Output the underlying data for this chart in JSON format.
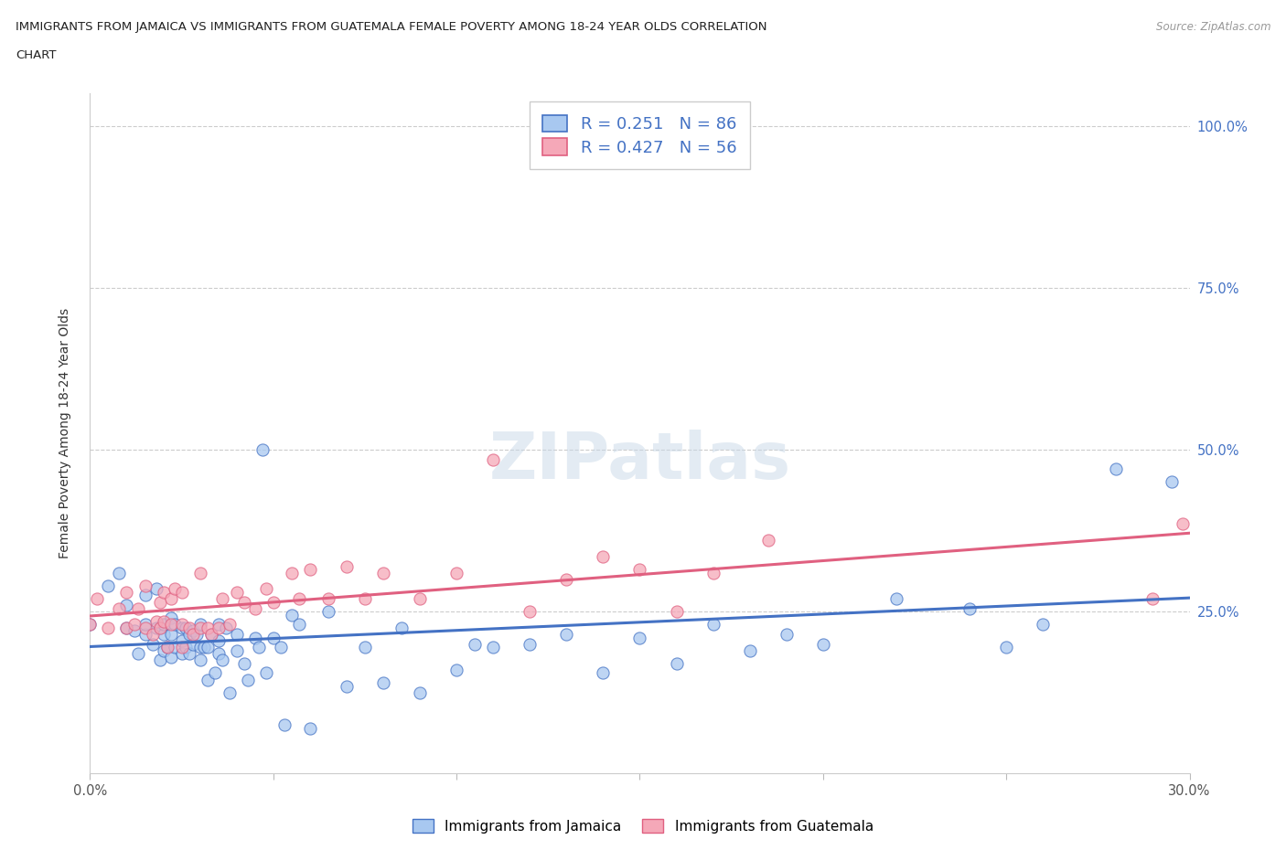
{
  "title_line1": "IMMIGRANTS FROM JAMAICA VS IMMIGRANTS FROM GUATEMALA FEMALE POVERTY AMONG 18-24 YEAR OLDS CORRELATION",
  "title_line2": "CHART",
  "source": "Source: ZipAtlas.com",
  "ylabel": "Female Poverty Among 18-24 Year Olds",
  "xlim": [
    0.0,
    0.3
  ],
  "ylim": [
    0.0,
    1.05
  ],
  "ytick_vals": [
    0.0,
    0.25,
    0.5,
    0.75,
    1.0
  ],
  "ytick_labels": [
    "",
    "25.0%",
    "50.0%",
    "75.0%",
    "100.0%"
  ],
  "xtick_vals": [
    0.0,
    0.05,
    0.1,
    0.15,
    0.2,
    0.25,
    0.3
  ],
  "xtick_labels": [
    "0.0%",
    "",
    "",
    "",
    "",
    "",
    "30.0%"
  ],
  "legend1_R": "0.251",
  "legend1_N": "86",
  "legend2_R": "0.427",
  "legend2_N": "56",
  "color_jamaica": "#a8c8f0",
  "color_guatemala": "#f5a8b8",
  "color_jamaica_line": "#4472c4",
  "color_guatemala_line": "#e06080",
  "jamaica_x": [
    0.0,
    0.005,
    0.008,
    0.01,
    0.01,
    0.012,
    0.013,
    0.015,
    0.015,
    0.015,
    0.017,
    0.018,
    0.018,
    0.019,
    0.019,
    0.02,
    0.02,
    0.02,
    0.021,
    0.022,
    0.022,
    0.022,
    0.023,
    0.023,
    0.025,
    0.025,
    0.025,
    0.026,
    0.026,
    0.027,
    0.027,
    0.028,
    0.028,
    0.029,
    0.03,
    0.03,
    0.03,
    0.031,
    0.032,
    0.032,
    0.033,
    0.034,
    0.035,
    0.035,
    0.035,
    0.036,
    0.037,
    0.038,
    0.04,
    0.04,
    0.042,
    0.043,
    0.045,
    0.046,
    0.047,
    0.048,
    0.05,
    0.052,
    0.053,
    0.055,
    0.057,
    0.06,
    0.065,
    0.07,
    0.075,
    0.08,
    0.085,
    0.09,
    0.1,
    0.105,
    0.11,
    0.12,
    0.13,
    0.14,
    0.15,
    0.16,
    0.17,
    0.18,
    0.19,
    0.2,
    0.22,
    0.24,
    0.25,
    0.26,
    0.28,
    0.295
  ],
  "jamaica_y": [
    0.23,
    0.29,
    0.31,
    0.225,
    0.26,
    0.22,
    0.185,
    0.215,
    0.23,
    0.275,
    0.2,
    0.225,
    0.285,
    0.175,
    0.225,
    0.19,
    0.215,
    0.23,
    0.195,
    0.18,
    0.215,
    0.24,
    0.195,
    0.23,
    0.185,
    0.205,
    0.225,
    0.195,
    0.225,
    0.185,
    0.215,
    0.2,
    0.22,
    0.215,
    0.175,
    0.195,
    0.23,
    0.195,
    0.145,
    0.195,
    0.215,
    0.155,
    0.185,
    0.205,
    0.23,
    0.175,
    0.225,
    0.125,
    0.19,
    0.215,
    0.17,
    0.145,
    0.21,
    0.195,
    0.5,
    0.155,
    0.21,
    0.195,
    0.075,
    0.245,
    0.23,
    0.07,
    0.25,
    0.135,
    0.195,
    0.14,
    0.225,
    0.125,
    0.16,
    0.2,
    0.195,
    0.2,
    0.215,
    0.155,
    0.21,
    0.17,
    0.23,
    0.19,
    0.215,
    0.2,
    0.27,
    0.255,
    0.195,
    0.23,
    0.47,
    0.45
  ],
  "guatemala_x": [
    0.0,
    0.002,
    0.005,
    0.008,
    0.01,
    0.01,
    0.012,
    0.013,
    0.015,
    0.015,
    0.017,
    0.018,
    0.019,
    0.019,
    0.02,
    0.02,
    0.021,
    0.022,
    0.022,
    0.023,
    0.025,
    0.025,
    0.025,
    0.027,
    0.028,
    0.03,
    0.03,
    0.032,
    0.033,
    0.035,
    0.036,
    0.038,
    0.04,
    0.042,
    0.045,
    0.048,
    0.05,
    0.055,
    0.057,
    0.06,
    0.065,
    0.07,
    0.075,
    0.08,
    0.09,
    0.1,
    0.11,
    0.12,
    0.13,
    0.14,
    0.15,
    0.16,
    0.17,
    0.185,
    0.29,
    0.298
  ],
  "guatemala_y": [
    0.23,
    0.27,
    0.225,
    0.255,
    0.225,
    0.28,
    0.23,
    0.255,
    0.225,
    0.29,
    0.215,
    0.235,
    0.225,
    0.265,
    0.235,
    0.28,
    0.195,
    0.23,
    0.27,
    0.285,
    0.195,
    0.23,
    0.28,
    0.225,
    0.215,
    0.225,
    0.31,
    0.225,
    0.215,
    0.225,
    0.27,
    0.23,
    0.28,
    0.265,
    0.255,
    0.285,
    0.265,
    0.31,
    0.27,
    0.315,
    0.27,
    0.32,
    0.27,
    0.31,
    0.27,
    0.31,
    0.485,
    0.25,
    0.3,
    0.335,
    0.315,
    0.25,
    0.31,
    0.36,
    0.27,
    0.385
  ]
}
